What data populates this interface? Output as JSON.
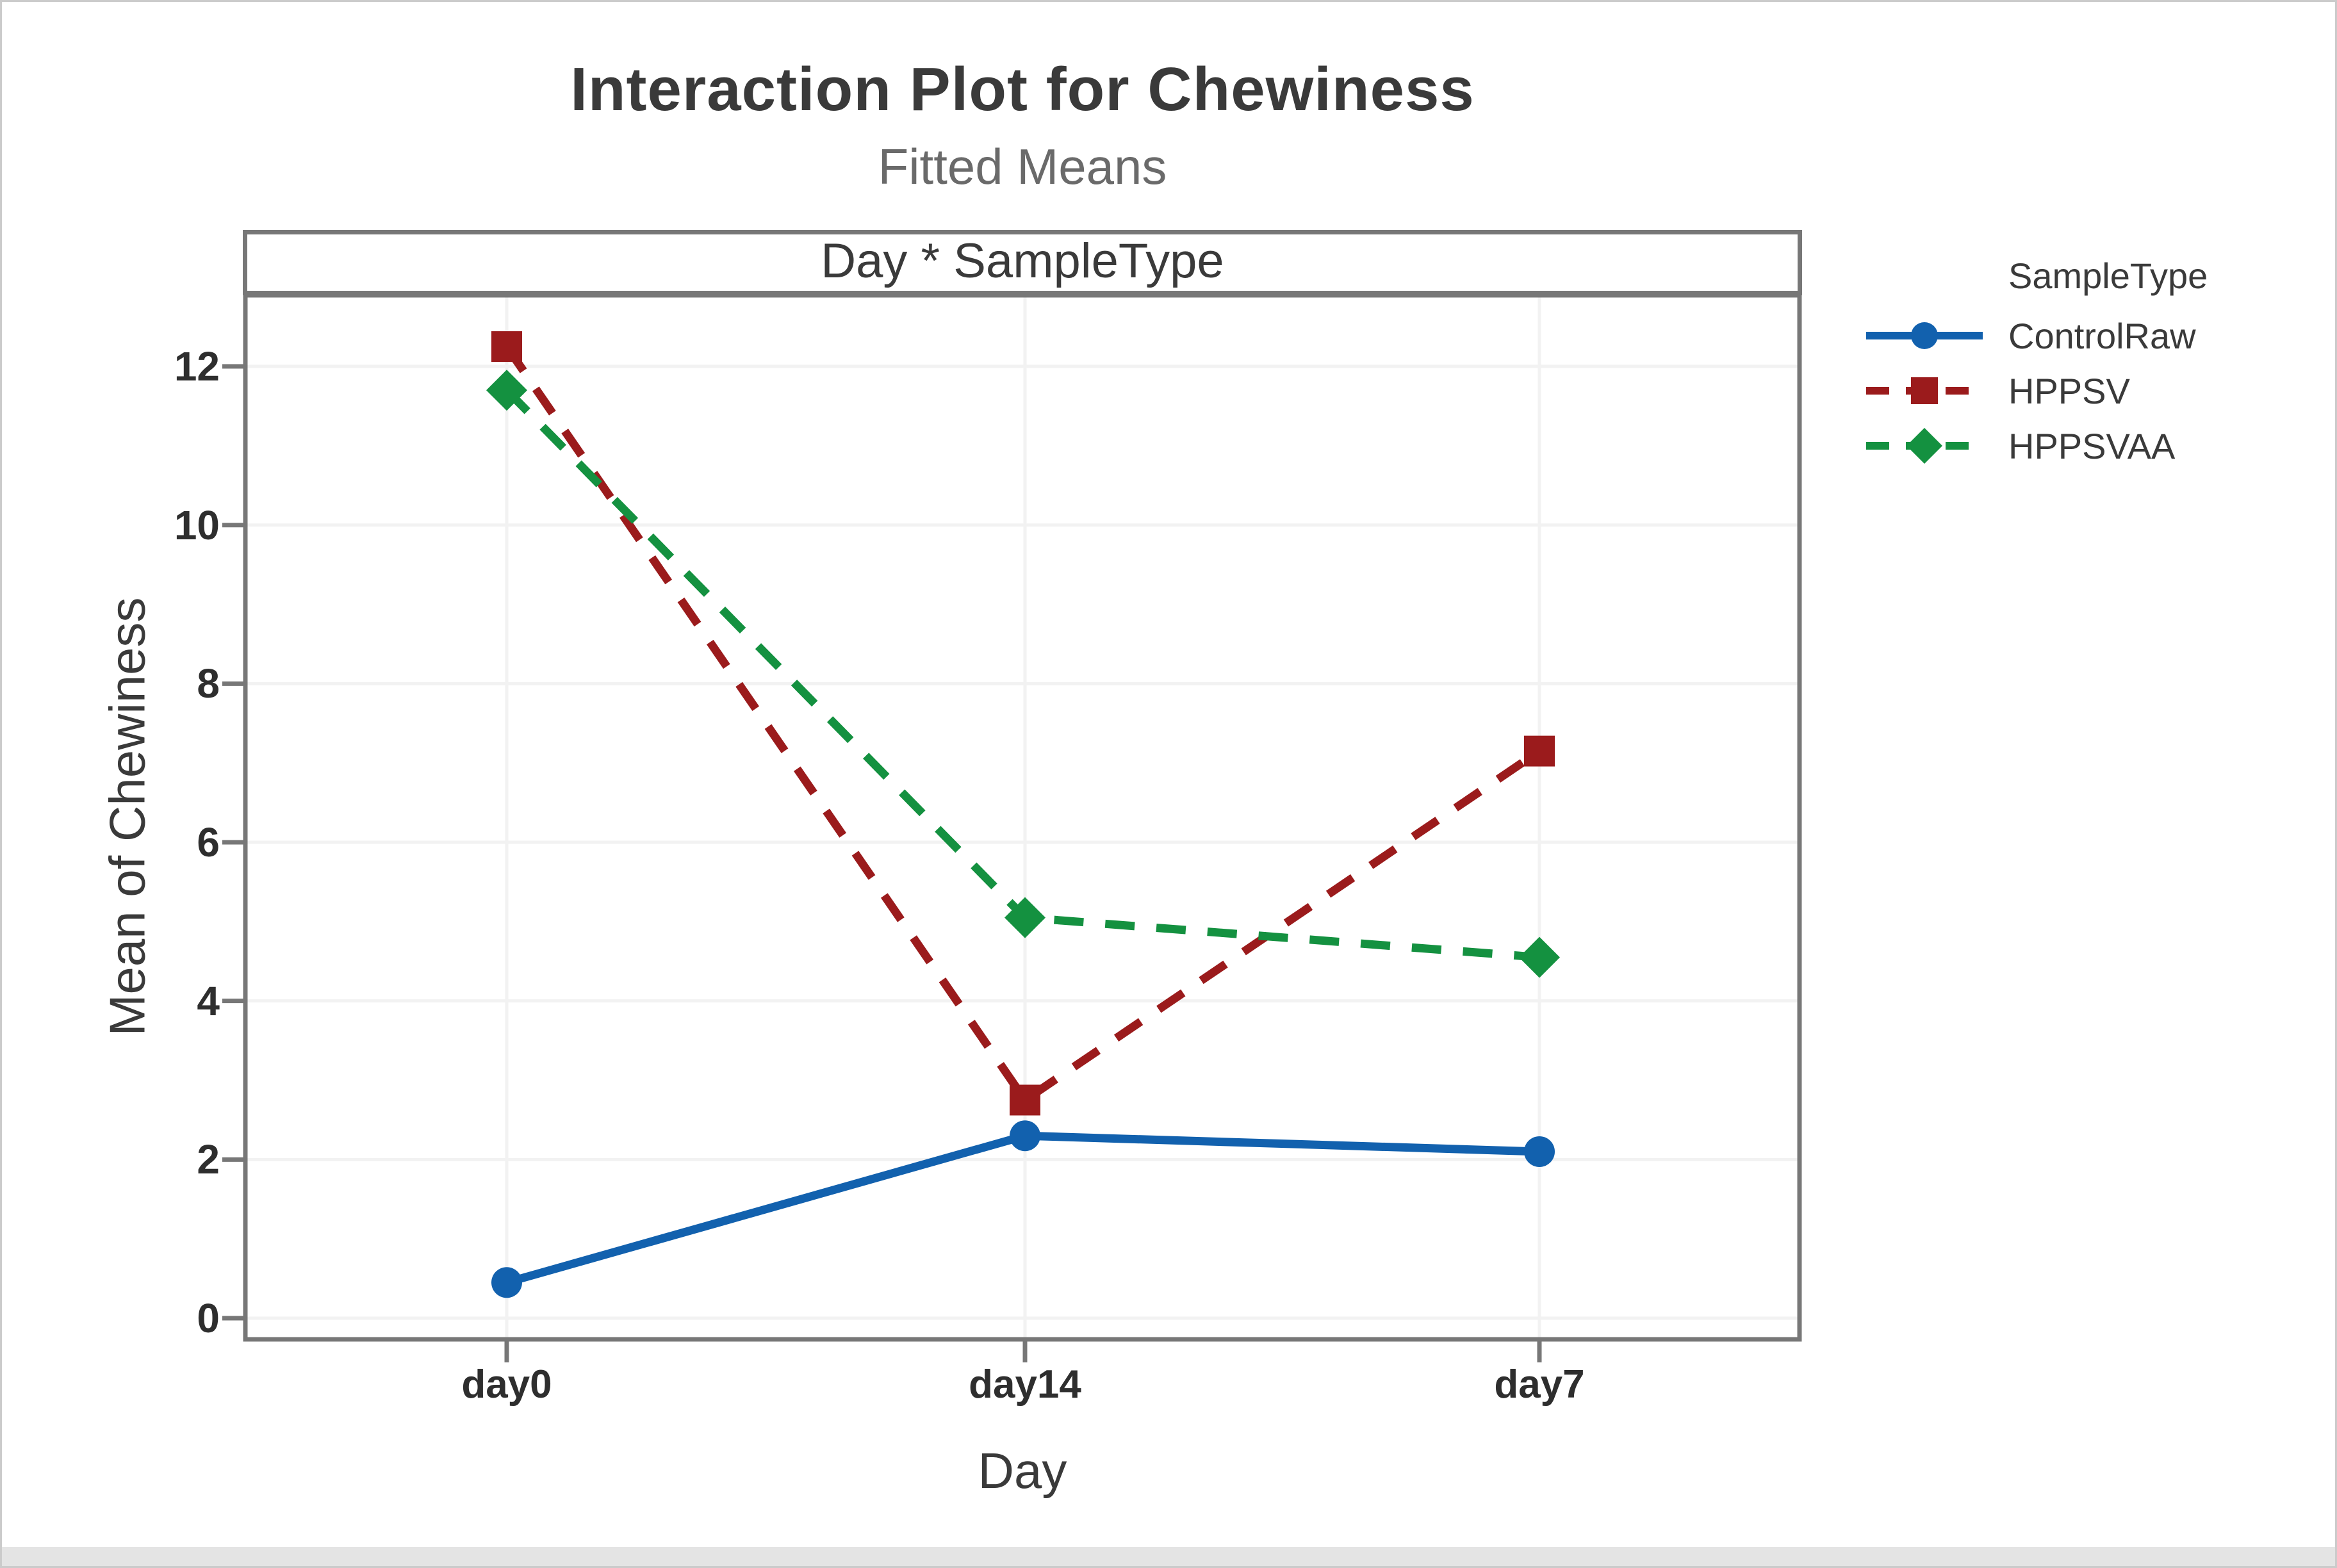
{
  "chart_data": {
    "type": "line",
    "title": "Interaction Plot for Chewiness",
    "subtitle": "Fitted Means",
    "panel_label": "Day * SampleType",
    "xlabel": "Day",
    "ylabel": "Mean of Chewiness",
    "legend_title": "SampleType",
    "legend_position": "right",
    "grid": true,
    "categories": [
      "day0",
      "day14",
      "day7"
    ],
    "yticks": [
      0,
      2,
      4,
      6,
      8,
      10,
      12
    ],
    "ylim": [
      0,
      13
    ],
    "series": [
      {
        "name": "ControlRaw",
        "marker": "circle",
        "line": "solid",
        "color": "#1261AE",
        "values": [
          0.45,
          2.3,
          2.1
        ]
      },
      {
        "name": "HPPSV",
        "marker": "square",
        "line": "dashed",
        "color": "#9B1B1C",
        "values": [
          12.25,
          2.75,
          7.15
        ]
      },
      {
        "name": "HPPSVAA",
        "marker": "diamond",
        "line": "dashed",
        "color": "#149140",
        "values": [
          11.7,
          5.05,
          4.55
        ]
      }
    ],
    "styles": {
      "grid_color": "#F2F2F2",
      "frame_color": "#777777",
      "title_color": "#3A3A3A",
      "subtitle_color": "#6A6A6A"
    }
  }
}
